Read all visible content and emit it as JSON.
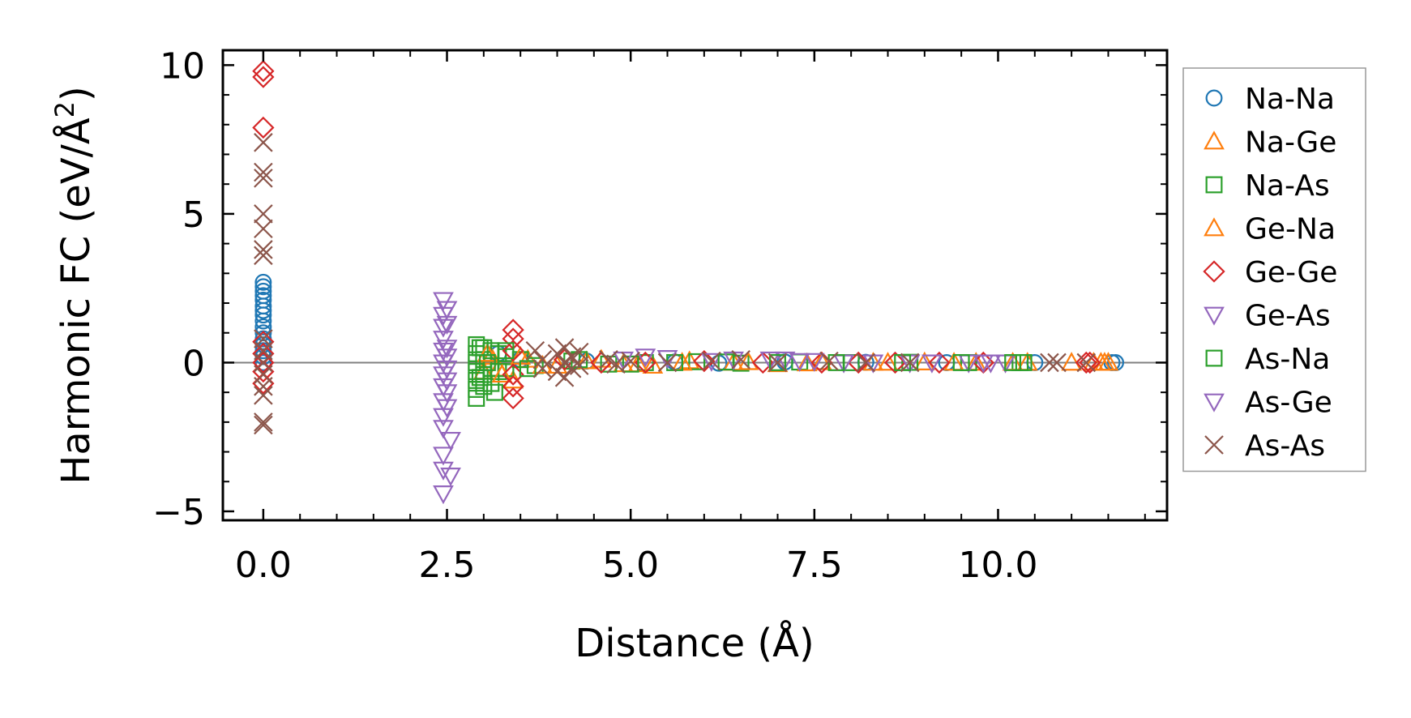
{
  "chart_data": {
    "type": "scatter",
    "title": "",
    "xlabel": "Distance (Å)",
    "ylabel_main": "Harmonic FC (eV/Å",
    "ylabel_sup": "2",
    "ylabel_close": ")",
    "xlim": [
      -0.55,
      12.3
    ],
    "ylim": [
      -5.3,
      10.5
    ],
    "xticks": [
      0.0,
      2.5,
      5.0,
      7.5,
      10.0
    ],
    "xtick_labels": [
      "0.0",
      "2.5",
      "5.0",
      "7.5",
      "10.0"
    ],
    "yticks": [
      -5,
      0,
      5,
      10
    ],
    "ytick_labels": [
      "−5",
      "0",
      "5",
      "10"
    ],
    "zero_line": 0,
    "legend_position": "right-outside",
    "series": [
      {
        "name": "Na-Na",
        "marker": "circle",
        "color": "#1f77b4",
        "points": [
          [
            0,
            2.7
          ],
          [
            0,
            2.55
          ],
          [
            0,
            2.4
          ],
          [
            0,
            2.25
          ],
          [
            0,
            2.1
          ],
          [
            0,
            1.9
          ],
          [
            0,
            1.75
          ],
          [
            0,
            1.6
          ],
          [
            0,
            1.4
          ],
          [
            0,
            1.2
          ],
          [
            0,
            1.0
          ],
          [
            0,
            0.8
          ],
          [
            0,
            0.6
          ],
          [
            0,
            0.4
          ],
          [
            0,
            0.2
          ],
          [
            0,
            0.0
          ],
          [
            3.2,
            0.3
          ],
          [
            3.5,
            0.1
          ],
          [
            4.4,
            0.05
          ],
          [
            5.6,
            0.02
          ],
          [
            6.2,
            -0.02
          ],
          [
            7.1,
            0.02
          ],
          [
            8.2,
            0.01
          ],
          [
            9.3,
            0.0
          ],
          [
            10.5,
            0.0
          ],
          [
            11.55,
            0.0
          ],
          [
            11.6,
            0.0
          ]
        ]
      },
      {
        "name": "Na-Ge",
        "marker": "triangle-up",
        "color": "#ff7f0e",
        "points": [
          [
            3.0,
            -0.3
          ],
          [
            3.1,
            0.2
          ],
          [
            3.2,
            -0.2
          ],
          [
            3.4,
            -0.6
          ],
          [
            3.6,
            0.1
          ],
          [
            4.0,
            -0.1
          ],
          [
            4.6,
            0.1
          ],
          [
            4.9,
            -0.05
          ],
          [
            5.3,
            -0.1
          ],
          [
            5.8,
            0.05
          ],
          [
            6.4,
            0.0
          ],
          [
            7.0,
            -0.05
          ],
          [
            7.6,
            0.02
          ],
          [
            8.3,
            0.0
          ],
          [
            9.0,
            0.01
          ],
          [
            9.7,
            0.0
          ],
          [
            10.4,
            0.0
          ],
          [
            11.0,
            0.0
          ],
          [
            11.3,
            0.0
          ],
          [
            11.45,
            0.0
          ],
          [
            11.5,
            0.0
          ]
        ]
      },
      {
        "name": "Na-As",
        "marker": "square",
        "color": "#2ca02c",
        "points": [
          [
            2.9,
            0.6
          ],
          [
            2.9,
            0.3
          ],
          [
            2.9,
            0.0
          ],
          [
            2.9,
            -0.3
          ],
          [
            2.9,
            -0.6
          ],
          [
            2.9,
            -0.9
          ],
          [
            2.9,
            -1.2
          ],
          [
            3.0,
            0.5
          ],
          [
            3.0,
            0.1
          ],
          [
            3.0,
            -0.4
          ],
          [
            3.0,
            -0.8
          ],
          [
            3.1,
            0.4
          ],
          [
            3.1,
            -0.2
          ],
          [
            3.1,
            -0.7
          ],
          [
            3.2,
            0.3
          ],
          [
            3.2,
            -0.3
          ],
          [
            3.3,
            0.2
          ],
          [
            3.3,
            -0.2
          ],
          [
            3.5,
            0.1
          ],
          [
            3.7,
            -0.1
          ],
          [
            4.2,
            0.05
          ],
          [
            4.7,
            -0.05
          ],
          [
            5.2,
            0.0
          ],
          [
            5.9,
            0.03
          ],
          [
            6.5,
            -0.02
          ],
          [
            7.3,
            0.02
          ],
          [
            8.0,
            0.0
          ],
          [
            8.8,
            0.01
          ],
          [
            9.6,
            0.0
          ],
          [
            10.3,
            0.0
          ]
        ]
      },
      {
        "name": "Ge-Na",
        "marker": "triangle-up",
        "color": "#ff7f0e",
        "points": [
          [
            3.05,
            0.3
          ],
          [
            3.25,
            -0.4
          ],
          [
            3.5,
            0.2
          ],
          [
            3.8,
            -0.1
          ],
          [
            4.4,
            0.05
          ],
          [
            5.1,
            -0.05
          ],
          [
            5.7,
            0.0
          ],
          [
            6.6,
            0.02
          ],
          [
            7.4,
            -0.02
          ],
          [
            8.5,
            0.0
          ],
          [
            9.4,
            0.0
          ],
          [
            10.2,
            0.0
          ],
          [
            11.4,
            0.0
          ]
        ]
      },
      {
        "name": "Ge-Ge",
        "marker": "diamond",
        "color": "#d62728",
        "points": [
          [
            0,
            9.8
          ],
          [
            0,
            9.6
          ],
          [
            0,
            7.9
          ],
          [
            0,
            0.7
          ],
          [
            0,
            0.3
          ],
          [
            0,
            0.0
          ],
          [
            0,
            -0.3
          ],
          [
            0,
            -0.7
          ],
          [
            3.4,
            1.1
          ],
          [
            3.4,
            0.8
          ],
          [
            3.4,
            0.4
          ],
          [
            3.4,
            -0.4
          ],
          [
            3.4,
            -0.8
          ],
          [
            3.4,
            -1.2
          ],
          [
            4.1,
            0.1
          ],
          [
            4.6,
            0.0
          ],
          [
            5.2,
            0.0
          ],
          [
            6.0,
            0.05
          ],
          [
            6.8,
            0.0
          ],
          [
            7.6,
            0.0
          ],
          [
            8.1,
            0.0
          ],
          [
            8.6,
            0.0
          ],
          [
            9.2,
            0.0
          ],
          [
            9.8,
            0.0
          ],
          [
            11.2,
            0.0
          ],
          [
            11.25,
            0.0
          ]
        ]
      },
      {
        "name": "Ge-As",
        "marker": "triangle-down",
        "color": "#9467bd",
        "points": [
          [
            2.45,
            2.1
          ],
          [
            2.45,
            1.6
          ],
          [
            2.45,
            1.2
          ],
          [
            2.45,
            0.8
          ],
          [
            2.45,
            0.4
          ],
          [
            2.45,
            0.0
          ],
          [
            2.45,
            -0.4
          ],
          [
            2.45,
            -0.8
          ],
          [
            2.45,
            -1.3
          ],
          [
            2.45,
            -1.8
          ],
          [
            2.45,
            -2.2
          ],
          [
            2.45,
            -3.1
          ],
          [
            2.45,
            -3.6
          ],
          [
            2.45,
            -4.4
          ],
          [
            2.5,
            1.3
          ],
          [
            2.5,
            0.5
          ],
          [
            2.5,
            -0.2
          ],
          [
            2.5,
            -1.0
          ],
          [
            2.55,
            -3.8
          ],
          [
            5.2,
            0.2
          ],
          [
            6.1,
            0.05
          ],
          [
            6.9,
            0.1
          ],
          [
            7.1,
            0.1
          ],
          [
            7.3,
            0.05
          ],
          [
            7.9,
            0.0
          ],
          [
            8.8,
            0.0
          ],
          [
            9.6,
            0.0
          ],
          [
            9.8,
            0.0
          ],
          [
            10.1,
            0.0
          ]
        ]
      },
      {
        "name": "As-Na",
        "marker": "square",
        "color": "#2ca02c",
        "points": [
          [
            2.95,
            0.5
          ],
          [
            2.95,
            -0.5
          ],
          [
            3.05,
            0.0
          ],
          [
            3.15,
            -1.0
          ],
          [
            3.3,
            0.4
          ],
          [
            3.6,
            -0.2
          ],
          [
            4.3,
            0.1
          ],
          [
            5.0,
            -0.05
          ],
          [
            5.6,
            0.0
          ],
          [
            6.3,
            0.02
          ],
          [
            7.0,
            0.0
          ],
          [
            7.8,
            0.0
          ],
          [
            8.7,
            0.0
          ],
          [
            9.5,
            0.0
          ],
          [
            10.2,
            0.0
          ],
          [
            10.35,
            0.0
          ]
        ]
      },
      {
        "name": "As-Ge",
        "marker": "triangle-down",
        "color": "#9467bd",
        "points": [
          [
            2.5,
            1.8
          ],
          [
            2.5,
            0.2
          ],
          [
            2.5,
            -0.6
          ],
          [
            2.5,
            -1.5
          ],
          [
            2.55,
            -2.6
          ],
          [
            4.9,
            0.1
          ],
          [
            5.5,
            0.15
          ],
          [
            6.4,
            0.1
          ],
          [
            7.5,
            0.05
          ],
          [
            8.3,
            0.0
          ],
          [
            9.1,
            0.0
          ],
          [
            9.9,
            0.0
          ]
        ]
      },
      {
        "name": "As-As",
        "marker": "x",
        "color": "#8c564b",
        "points": [
          [
            0,
            7.4
          ],
          [
            0,
            6.4
          ],
          [
            0,
            6.2
          ],
          [
            0,
            5.0
          ],
          [
            0,
            4.5
          ],
          [
            0,
            3.8
          ],
          [
            0,
            3.6
          ],
          [
            0,
            0.8
          ],
          [
            0,
            0.4
          ],
          [
            0,
            0.0
          ],
          [
            0,
            -0.4
          ],
          [
            0,
            -0.8
          ],
          [
            0,
            -1.1
          ],
          [
            0,
            -2.0
          ],
          [
            0,
            -2.1
          ],
          [
            3.7,
            0.4
          ],
          [
            3.8,
            0.1
          ],
          [
            3.8,
            -0.2
          ],
          [
            4.0,
            0.3
          ],
          [
            4.0,
            -0.3
          ],
          [
            4.1,
            0.5
          ],
          [
            4.1,
            0.0
          ],
          [
            4.1,
            -0.5
          ],
          [
            4.2,
            0.2
          ],
          [
            4.2,
            -0.2
          ],
          [
            4.3,
            0.35
          ],
          [
            4.3,
            -0.1
          ],
          [
            4.7,
            0.1
          ],
          [
            4.8,
            -0.05
          ],
          [
            5.0,
            0.05
          ],
          [
            5.5,
            0.0
          ],
          [
            6.1,
            0.05
          ],
          [
            6.5,
            0.1
          ],
          [
            7.0,
            0.0
          ],
          [
            7.7,
            0.05
          ],
          [
            8.2,
            0.0
          ],
          [
            8.8,
            0.0
          ],
          [
            10.7,
            0.0
          ],
          [
            10.8,
            0.0
          ],
          [
            11.2,
            0.0
          ]
        ]
      }
    ]
  }
}
